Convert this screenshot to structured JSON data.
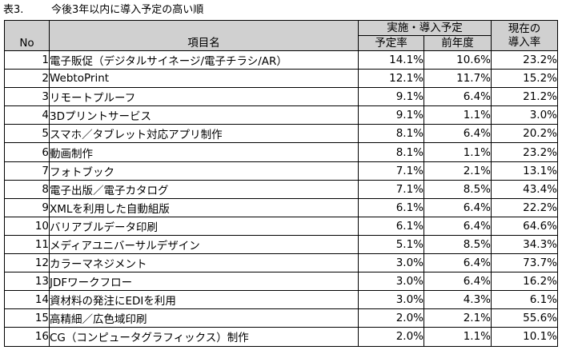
{
  "caption": {
    "number": "表3.",
    "title": "今後3年以内に導入予定の高い順"
  },
  "header": {
    "no": "No",
    "item": "項目名",
    "plan_group": "実施・導入予定",
    "rate": "予定率",
    "last_year": "前年度",
    "current_line1": "現在の",
    "current_line2": "導入率"
  },
  "rows": [
    {
      "no": "1",
      "item": "電子販促（デジタルサイネージ/電子チラシ/AR）",
      "rate": "14.1%",
      "last_year": "10.6%",
      "current": "23.2%"
    },
    {
      "no": "2",
      "item": "WebtoPrint",
      "rate": "12.1%",
      "last_year": "11.7%",
      "current": "15.2%"
    },
    {
      "no": "3",
      "item": "リモートプルーフ",
      "rate": "9.1%",
      "last_year": "6.4%",
      "current": "21.2%"
    },
    {
      "no": "4",
      "item": "3Dプリントサービス",
      "rate": "9.1%",
      "last_year": "1.1%",
      "current": "3.0%"
    },
    {
      "no": "5",
      "item": "スマホ／タブレット対応アプリ制作",
      "rate": "8.1%",
      "last_year": "6.4%",
      "current": "20.2%"
    },
    {
      "no": "6",
      "item": "動画制作",
      "rate": "8.1%",
      "last_year": "1.1%",
      "current": "23.2%"
    },
    {
      "no": "7",
      "item": "フォトブック",
      "rate": "7.1%",
      "last_year": "2.1%",
      "current": "13.1%"
    },
    {
      "no": "8",
      "item": "電子出版／電子カタログ",
      "rate": "7.1%",
      "last_year": "8.5%",
      "current": "43.4%"
    },
    {
      "no": "9",
      "item": "XMLを利用した自動組版",
      "rate": "6.1%",
      "last_year": "6.4%",
      "current": "22.2%"
    },
    {
      "no": "10",
      "item": "バリアブルデータ印刷",
      "rate": "6.1%",
      "last_year": "6.4%",
      "current": "64.6%"
    },
    {
      "no": "11",
      "item": "メディアユニバーサルデザイン",
      "rate": "5.1%",
      "last_year": "8.5%",
      "current": "34.3%"
    },
    {
      "no": "12",
      "item": "カラーマネジメント",
      "rate": "3.0%",
      "last_year": "6.4%",
      "current": "73.7%"
    },
    {
      "no": "13",
      "item": "JDFワークフロー",
      "rate": "3.0%",
      "last_year": "6.4%",
      "current": "16.2%"
    },
    {
      "no": "14",
      "item": "資材料の発注にEDIを利用",
      "rate": "3.0%",
      "last_year": "4.3%",
      "current": "6.1%"
    },
    {
      "no": "15",
      "item": "高精細／広色域印刷",
      "rate": "2.0%",
      "last_year": "2.1%",
      "current": "55.6%"
    },
    {
      "no": "16",
      "item": "CG（コンピュータグラフィックス）制作",
      "rate": "2.0%",
      "last_year": "1.1%",
      "current": "10.1%"
    }
  ],
  "colors": {
    "header_bg": "#d0d0d0",
    "border": "#000000"
  }
}
